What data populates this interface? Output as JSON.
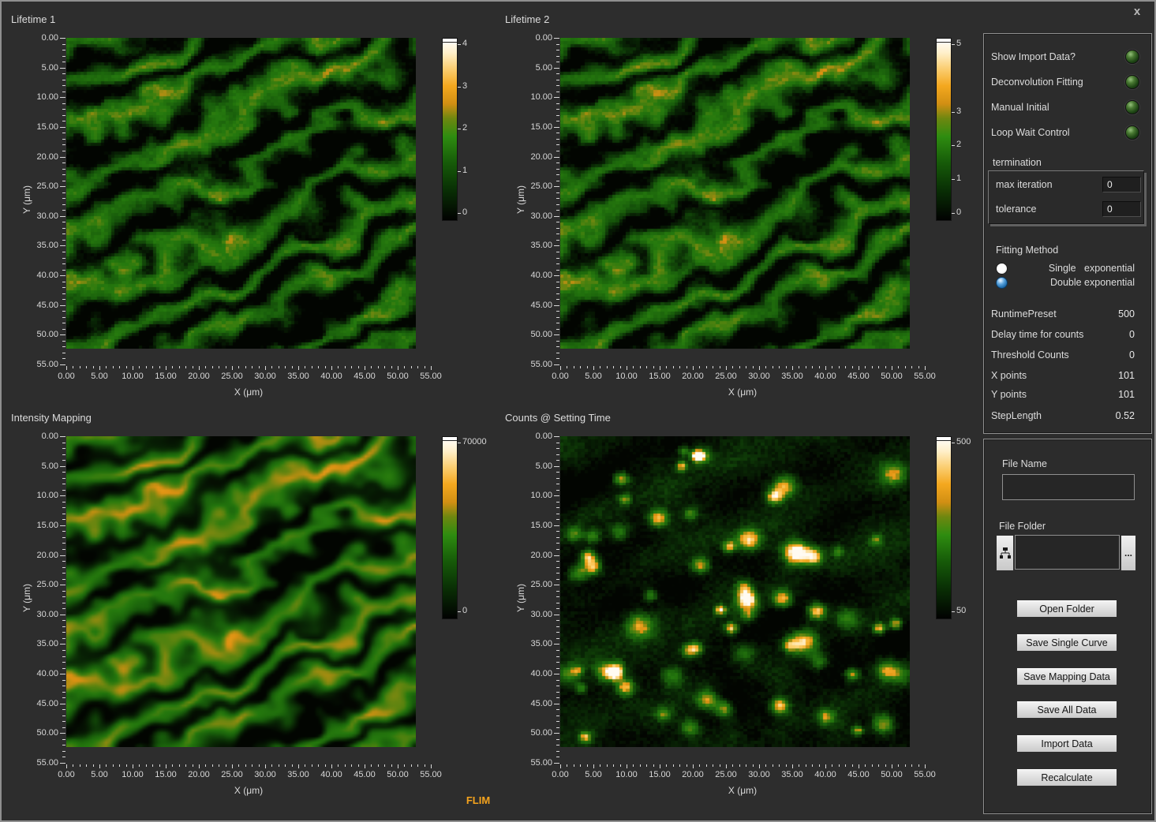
{
  "window": {
    "close_label": "x",
    "footer_label": "FLIM"
  },
  "chart_data": [
    {
      "id": "lifetime1",
      "type": "heatmap",
      "title": "Lifetime 1",
      "xlabel": "X (μm)",
      "ylabel": "Y (μm)",
      "x_range": [
        0,
        55
      ],
      "y_range": [
        0,
        55
      ],
      "grid_points": [
        101,
        101
      ],
      "xticks": [
        "0.00",
        "5.00",
        "10.00",
        "15.00",
        "20.00",
        "25.00",
        "30.00",
        "35.00",
        "40.00",
        "45.00",
        "50.00",
        "55.00"
      ],
      "yticks": [
        "0.00",
        "5.00",
        "10.00",
        "15.00",
        "20.00",
        "25.00",
        "30.00",
        "35.00",
        "40.00",
        "45.00",
        "50.00",
        "55.00"
      ],
      "colorbar": {
        "min": 0,
        "max": 4,
        "ticks": [
          {
            "label": "4",
            "value": 4
          },
          {
            "label": "3",
            "value": 3
          },
          {
            "label": "2",
            "value": 2
          },
          {
            "label": "1",
            "value": 1
          },
          {
            "label": "0",
            "value": 0
          }
        ]
      },
      "palette": "black-green-orange-white",
      "pattern": "diagonal-stripes",
      "seed": 7
    },
    {
      "id": "lifetime2",
      "type": "heatmap",
      "title": "Lifetime 2",
      "xlabel": "X (μm)",
      "ylabel": "Y (μm)",
      "x_range": [
        0,
        55
      ],
      "y_range": [
        0,
        55
      ],
      "grid_points": [
        101,
        101
      ],
      "xticks": [
        "0.00",
        "5.00",
        "10.00",
        "15.00",
        "20.00",
        "25.00",
        "30.00",
        "35.00",
        "40.00",
        "45.00",
        "50.00",
        "55.00"
      ],
      "yticks": [
        "0.00",
        "5.00",
        "10.00",
        "15.00",
        "20.00",
        "25.00",
        "30.00",
        "35.00",
        "40.00",
        "45.00",
        "50.00",
        "55.00"
      ],
      "colorbar": {
        "min": 0,
        "max": 5,
        "ticks": [
          {
            "label": "5",
            "value": 5
          },
          {
            "label": "3",
            "value": 3
          },
          {
            "label": "2",
            "value": 2
          },
          {
            "label": "1",
            "value": 1
          },
          {
            "label": "0",
            "value": 0
          }
        ]
      },
      "palette": "black-green-orange-white",
      "pattern": "diagonal-stripes",
      "seed": 7
    },
    {
      "id": "intensity",
      "type": "heatmap",
      "title": "Intensity Mapping",
      "xlabel": "X (μm)",
      "ylabel": "Y (μm)",
      "x_range": [
        0,
        55
      ],
      "y_range": [
        0,
        55
      ],
      "grid_points": [
        101,
        101
      ],
      "xticks": [
        "0.00",
        "5.00",
        "10.00",
        "15.00",
        "20.00",
        "25.00",
        "30.00",
        "35.00",
        "40.00",
        "45.00",
        "50.00",
        "55.00"
      ],
      "yticks": [
        "0.00",
        "5.00",
        "10.00",
        "15.00",
        "20.00",
        "25.00",
        "30.00",
        "35.00",
        "40.00",
        "45.00",
        "50.00",
        "55.00"
      ],
      "colorbar": {
        "min": 0,
        "max": 70000,
        "ticks": [
          {
            "label": "70000",
            "value": 70000
          },
          {
            "label": "0",
            "value": 0
          }
        ]
      },
      "palette": "black-green-orange-white",
      "pattern": "diagonal-stripes-smooth",
      "seed": 7
    },
    {
      "id": "counts",
      "type": "heatmap",
      "title": "Counts @ Setting Time",
      "xlabel": "X (μm)",
      "ylabel": "Y (μm)",
      "x_range": [
        0,
        55
      ],
      "y_range": [
        0,
        55
      ],
      "grid_points": [
        101,
        101
      ],
      "xticks": [
        "0.00",
        "5.00",
        "10.00",
        "15.00",
        "20.00",
        "25.00",
        "30.00",
        "35.00",
        "40.00",
        "45.00",
        "50.00",
        "55.00"
      ],
      "yticks": [
        "0.00",
        "5.00",
        "10.00",
        "15.00",
        "20.00",
        "25.00",
        "30.00",
        "35.00",
        "40.00",
        "45.00",
        "50.00",
        "55.00"
      ],
      "colorbar": {
        "min": 50,
        "max": 500,
        "ticks": [
          {
            "label": "500",
            "value": 500
          },
          {
            "label": "50",
            "value": 50
          }
        ]
      },
      "palette": "black-green-orange-white",
      "pattern": "scattered-spots",
      "seed": 21
    }
  ],
  "sidebar": {
    "toggles": [
      {
        "label": "Show Import Data?"
      },
      {
        "label": "Deconvolution Fitting"
      },
      {
        "label": "Manual Initial"
      },
      {
        "label": "Loop Wait Control"
      }
    ],
    "termination": {
      "group_label": "termination",
      "fields": [
        {
          "label": "max iteration",
          "value": "0"
        },
        {
          "label": "tolerance",
          "value": "0"
        }
      ]
    },
    "fitting_method": {
      "label": "Fitting Method",
      "options": [
        {
          "label": "Single   exponential",
          "selected": false
        },
        {
          "label": "Double exponential",
          "selected": true
        }
      ]
    },
    "params": [
      {
        "label": "RuntimePreset",
        "value": "500"
      },
      {
        "label": "Delay time for counts",
        "value": "0"
      },
      {
        "label": "Threshold Counts",
        "value": "0"
      },
      {
        "label": "X points",
        "value": "101"
      },
      {
        "label": "Y points",
        "value": "101"
      },
      {
        "label": "StepLength",
        "value": "0.52"
      }
    ],
    "file": {
      "name_label": "File Name",
      "name_value": "",
      "folder_label": "File Folder",
      "folder_value": "",
      "browse_label": "..."
    },
    "buttons": [
      "Open Folder",
      "Save Single Curve",
      "Save Mapping Data",
      "Save All Data",
      "Import Data",
      "Recalculate"
    ]
  }
}
